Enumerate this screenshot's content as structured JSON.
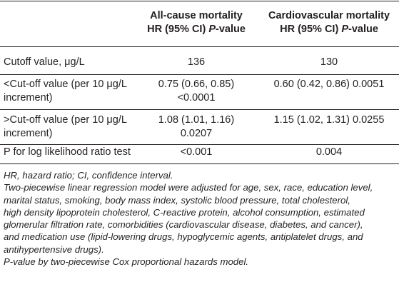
{
  "table": {
    "columns": [
      {
        "line1": "All-cause mortality",
        "line2_main": "HR (95% CI) ",
        "line2_italic": "P",
        "line2_rest": "-value"
      },
      {
        "line1": "Cardiovascular mortality",
        "line2_main": "HR (95% CI) ",
        "line2_italic": "P",
        "line2_rest": "-value"
      }
    ],
    "rows": [
      {
        "label": [
          "Cutoff value, μg/L"
        ],
        "c1": [
          "136"
        ],
        "c2": [
          "130"
        ]
      },
      {
        "label": [
          "<Cut-off value (per 10 μg/L",
          "increment)"
        ],
        "c1": [
          "0.75 (0.66, 0.85)",
          "<0.0001"
        ],
        "c2": [
          "0.60 (0.42, 0.86) 0.0051"
        ]
      },
      {
        "label": [
          ">Cut-off value (per 10 μg/L",
          "increment)"
        ],
        "c1": [
          "1.08 (1.01, 1.16)",
          "0.0207"
        ],
        "c2": [
          "1.15 (1.02, 1.31) 0.0255"
        ]
      },
      {
        "label": [
          "P for log likelihood ratio test"
        ],
        "c1": [
          "<0.001"
        ],
        "c2": [
          "0.004"
        ]
      }
    ]
  },
  "footnotes": [
    "HR, hazard ratio; CI, confidence interval.",
    "Two-piecewise linear regression model were adjusted for age, sex, race, education level,",
    "marital status, smoking, body mass index, systolic blood pressure, total cholesterol,",
    "high density lipoprotein cholesterol, C-reactive protein, alcohol consumption, estimated",
    "glomerular filtration rate, comorbidities (cardiovascular disease, diabetes, and cancer),",
    "and medication use (lipid-lowering drugs, hypoglycemic agents, antiplatelet drugs, and",
    "antihypertensive drugs).",
    "P-value by two-piecewise Cox proportional hazards model."
  ]
}
